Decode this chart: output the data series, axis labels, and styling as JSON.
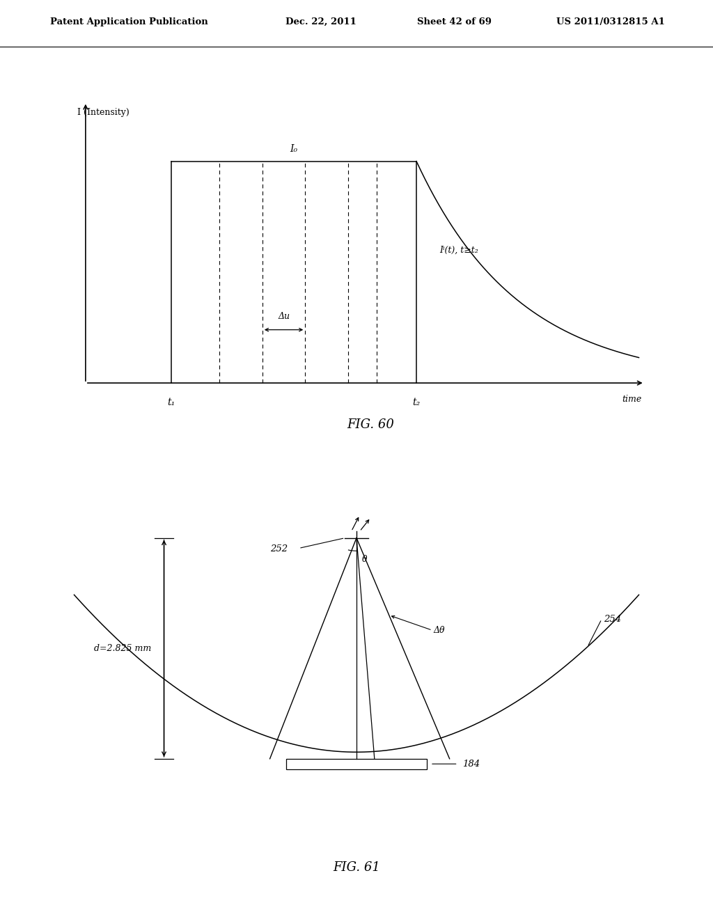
{
  "bg_color": "#ffffff",
  "header_text": "Patent Application Publication",
  "header_date": "Dec. 22, 2011",
  "header_sheet": "Sheet 42 of 69",
  "header_patent": "US 2011/0312815 A1",
  "fig60_title": "FIG. 60",
  "fig60_ylabel": "I (Intensity)",
  "fig60_xlabel": "time",
  "fig60_I0_label": "I₀",
  "fig60_If_label": "Iⁱ(t), t≥t₂",
  "fig60_delta_label": "Δu",
  "fig60_t1_label": "t₁",
  "fig60_t2_label": "t₂",
  "fig61_title": "FIG. 61",
  "fig61_d_label": "d=2.825 mm",
  "fig61_252_label": "252",
  "fig61_theta_label": "θ",
  "fig61_dtheta_label": "Δθ",
  "fig61_254_label": "254",
  "fig61_184_label": "184"
}
